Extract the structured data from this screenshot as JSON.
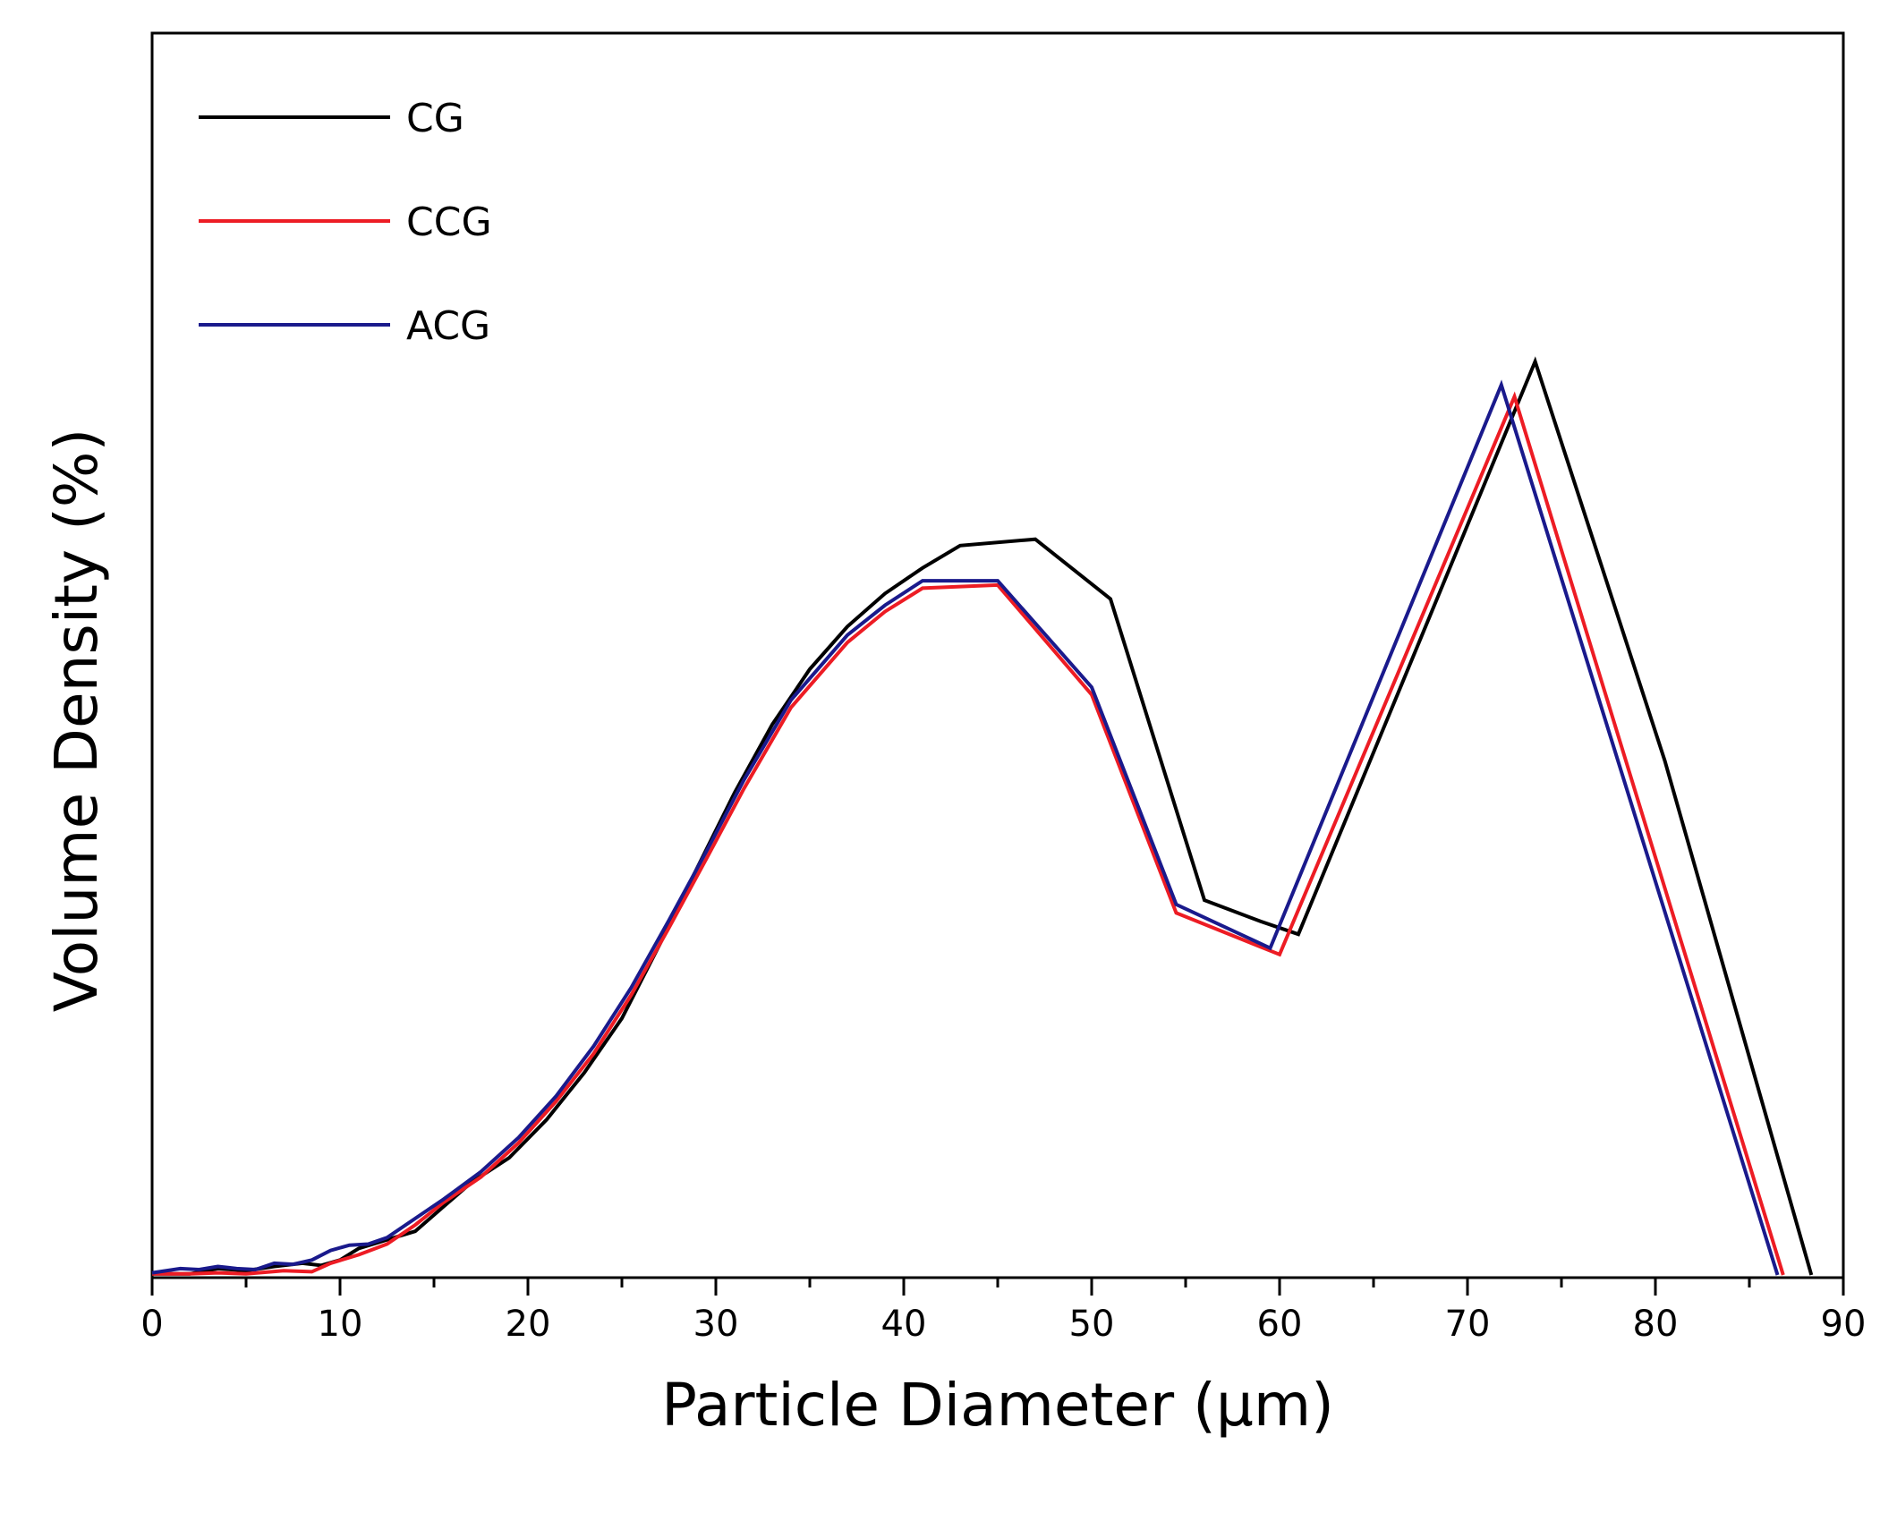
{
  "chart_data": {
    "type": "line",
    "xlabel": "Particle Diameter (μm)",
    "ylabel": "Volume Density (%)",
    "xlim": [
      0,
      90
    ],
    "ylim": [
      0,
      100
    ],
    "x_ticks": [
      "0",
      "10",
      "20",
      "30",
      "40",
      "50",
      "60",
      "70",
      "80",
      "90"
    ],
    "y_ticks_shown": false,
    "grid": false,
    "legend_position": "top-left",
    "series": [
      {
        "name": "CG",
        "color": "#000000",
        "points": [
          [
            0,
            0.1
          ],
          [
            2,
            0.1
          ],
          [
            3.5,
            0.6
          ],
          [
            5,
            0.4
          ],
          [
            6.5,
            0.8
          ],
          [
            8,
            1.1
          ],
          [
            9,
            0.9
          ],
          [
            10,
            1.4
          ],
          [
            11,
            2.5
          ],
          [
            12.5,
            3.3
          ],
          [
            14,
            4.1
          ],
          [
            15.5,
            6.4
          ],
          [
            17,
            8.7
          ],
          [
            19,
            11.0
          ],
          [
            21,
            14.6
          ],
          [
            23,
            19.0
          ],
          [
            25,
            24.1
          ],
          [
            27,
            31.0
          ],
          [
            29,
            38.2
          ],
          [
            31,
            45.3
          ],
          [
            33,
            51.7
          ],
          [
            35,
            56.9
          ],
          [
            37,
            60.9
          ],
          [
            39,
            64.0
          ],
          [
            41,
            66.4
          ],
          [
            43,
            68.5
          ],
          [
            47,
            69.1
          ],
          [
            51,
            63.5
          ],
          [
            56,
            35.2
          ],
          [
            59,
            33.2
          ],
          [
            61,
            32.0
          ],
          [
            73.6,
            85.8
          ],
          [
            80.5,
            48.3
          ],
          [
            88.3,
            0
          ]
        ]
      },
      {
        "name": "CCG",
        "color": "#ed1c24",
        "points": [
          [
            0,
            0.1
          ],
          [
            2,
            0.1
          ],
          [
            3.5,
            0.2
          ],
          [
            5,
            0.1
          ],
          [
            7,
            0.4
          ],
          [
            8.5,
            0.3
          ],
          [
            9.5,
            1.1
          ],
          [
            11,
            1.9
          ],
          [
            12.5,
            2.9
          ],
          [
            14,
            4.7
          ],
          [
            15.5,
            6.8
          ],
          [
            17.5,
            9.2
          ],
          [
            19.5,
            12.4
          ],
          [
            21.5,
            16.3
          ],
          [
            23.5,
            20.8
          ],
          [
            25.5,
            26.3
          ],
          [
            27.5,
            32.6
          ],
          [
            29.5,
            39.1
          ],
          [
            31.5,
            45.7
          ],
          [
            34,
            53.3
          ],
          [
            37,
            59.4
          ],
          [
            39,
            62.3
          ],
          [
            41,
            64.5
          ],
          [
            45,
            64.8
          ],
          [
            50,
            54.5
          ],
          [
            54.5,
            34.0
          ],
          [
            60,
            30.1
          ],
          [
            72.5,
            82.5
          ],
          [
            86.8,
            0
          ]
        ]
      },
      {
        "name": "ACG",
        "color": "#1a1a8c",
        "points": [
          [
            0,
            0.2
          ],
          [
            1.5,
            0.6
          ],
          [
            2.5,
            0.5
          ],
          [
            3.5,
            0.8
          ],
          [
            4.5,
            0.6
          ],
          [
            5.5,
            0.5
          ],
          [
            6.5,
            1.1
          ],
          [
            7.5,
            1.0
          ],
          [
            8.5,
            1.4
          ],
          [
            9.5,
            2.3
          ],
          [
            10.5,
            2.8
          ],
          [
            11.5,
            2.9
          ],
          [
            12.5,
            3.5
          ],
          [
            14,
            5.3
          ],
          [
            15.5,
            7.1
          ],
          [
            17.5,
            9.7
          ],
          [
            19.5,
            12.9
          ],
          [
            21.5,
            16.8
          ],
          [
            23.5,
            21.5
          ],
          [
            25.5,
            27.0
          ],
          [
            27.5,
            33.3
          ],
          [
            29.5,
            39.8
          ],
          [
            31.5,
            46.5
          ],
          [
            34,
            54.0
          ],
          [
            37,
            60.1
          ],
          [
            39,
            62.9
          ],
          [
            41,
            65.2
          ],
          [
            45,
            65.2
          ],
          [
            50,
            55.2
          ],
          [
            54.5,
            34.8
          ],
          [
            59.5,
            30.7
          ],
          [
            71.8,
            83.6
          ],
          [
            86.5,
            0
          ]
        ]
      }
    ]
  }
}
